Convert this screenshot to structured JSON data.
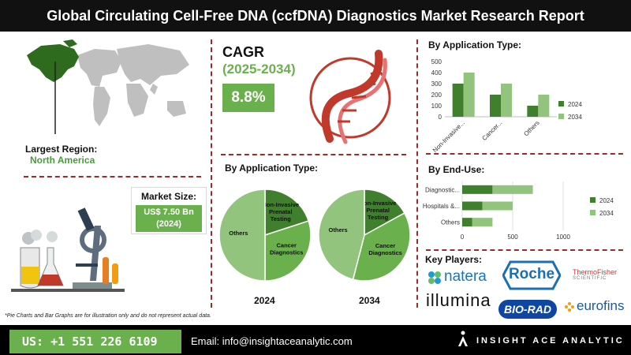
{
  "title": "Global Circulating Cell-Free DNA (ccfDNA) Diagnostics Market Research Report",
  "largest_region": {
    "label": "Largest Region:",
    "value": "North America"
  },
  "market_size": {
    "label": "Market Size:",
    "value_line1": "US$ 7.50 Bn",
    "value_line2": "(2024)"
  },
  "cagr": {
    "label": "CAGR",
    "period": "(2025-2034)",
    "value": "8.8%"
  },
  "pies": {
    "title": "By Application Type:",
    "label_2024": "2024",
    "label_2034": "2034"
  },
  "bar_app": {
    "title": "By Application Type:"
  },
  "bar_enduse": {
    "title": "By End-Use:"
  },
  "key_players": {
    "title": "Key Players:",
    "names": [
      "natera",
      "Roche",
      "ThermoFisher",
      "SCIENTIFIC",
      "illumina",
      "BIO-RAD",
      "eurofins"
    ]
  },
  "footnote": "*Pie Charts and Bar Graphs are for illustration only and do not represent actual data.",
  "footer": {
    "phone": "US: +1 551 226 6109",
    "email": "Email: info@insightaceanalytic.com",
    "brand": "INSIGHT ACE ANALYTIC"
  },
  "colors": {
    "green_dark": "#3f7f2d",
    "green_mid": "#6ab04c",
    "green_light": "#93c47d",
    "accent_red": "#c0392b",
    "black": "#111111"
  },
  "icons": [
    "world-map-icon",
    "lab-equipment-icon",
    "dna-helix-icon",
    "brand-logo-icon"
  ],
  "chart_data": [
    {
      "type": "pie",
      "title": "By Application Type:",
      "caption": "2024",
      "categories": [
        "Non-Invasive Prenatal Testing",
        "Cancer Diagnostics",
        "Others"
      ],
      "values": [
        20,
        30,
        50
      ]
    },
    {
      "type": "pie",
      "title": "By Application Type:",
      "caption": "2034",
      "categories": [
        "Non-Invasive Prenatal Testing",
        "Cancer Diagnostics",
        "Others"
      ],
      "values": [
        17,
        37,
        46
      ]
    },
    {
      "type": "bar",
      "title": "By Application Type:",
      "categories": [
        "Non-Invasive...",
        "Cancer...",
        "Others"
      ],
      "series": [
        {
          "name": "2024",
          "values": [
            300,
            200,
            100
          ]
        },
        {
          "name": "2034",
          "values": [
            400,
            300,
            200
          ]
        }
      ],
      "ylim": [
        0,
        500
      ],
      "yticks": [
        0,
        100,
        200,
        300,
        400,
        500
      ],
      "legend": "right",
      "grid": false
    },
    {
      "type": "bar",
      "orientation": "horizontal",
      "title": "By End-Use:",
      "categories": [
        "Diagnostic...",
        "Hospitals &...",
        "Others"
      ],
      "series": [
        {
          "name": "2024",
          "values": [
            300,
            200,
            100
          ]
        },
        {
          "name": "2034",
          "values": [
            400,
            300,
            200
          ]
        }
      ],
      "stacked": true,
      "xlim": [
        0,
        1000
      ],
      "xticks": [
        0,
        500,
        1000
      ],
      "legend": "right",
      "grid": true
    }
  ]
}
